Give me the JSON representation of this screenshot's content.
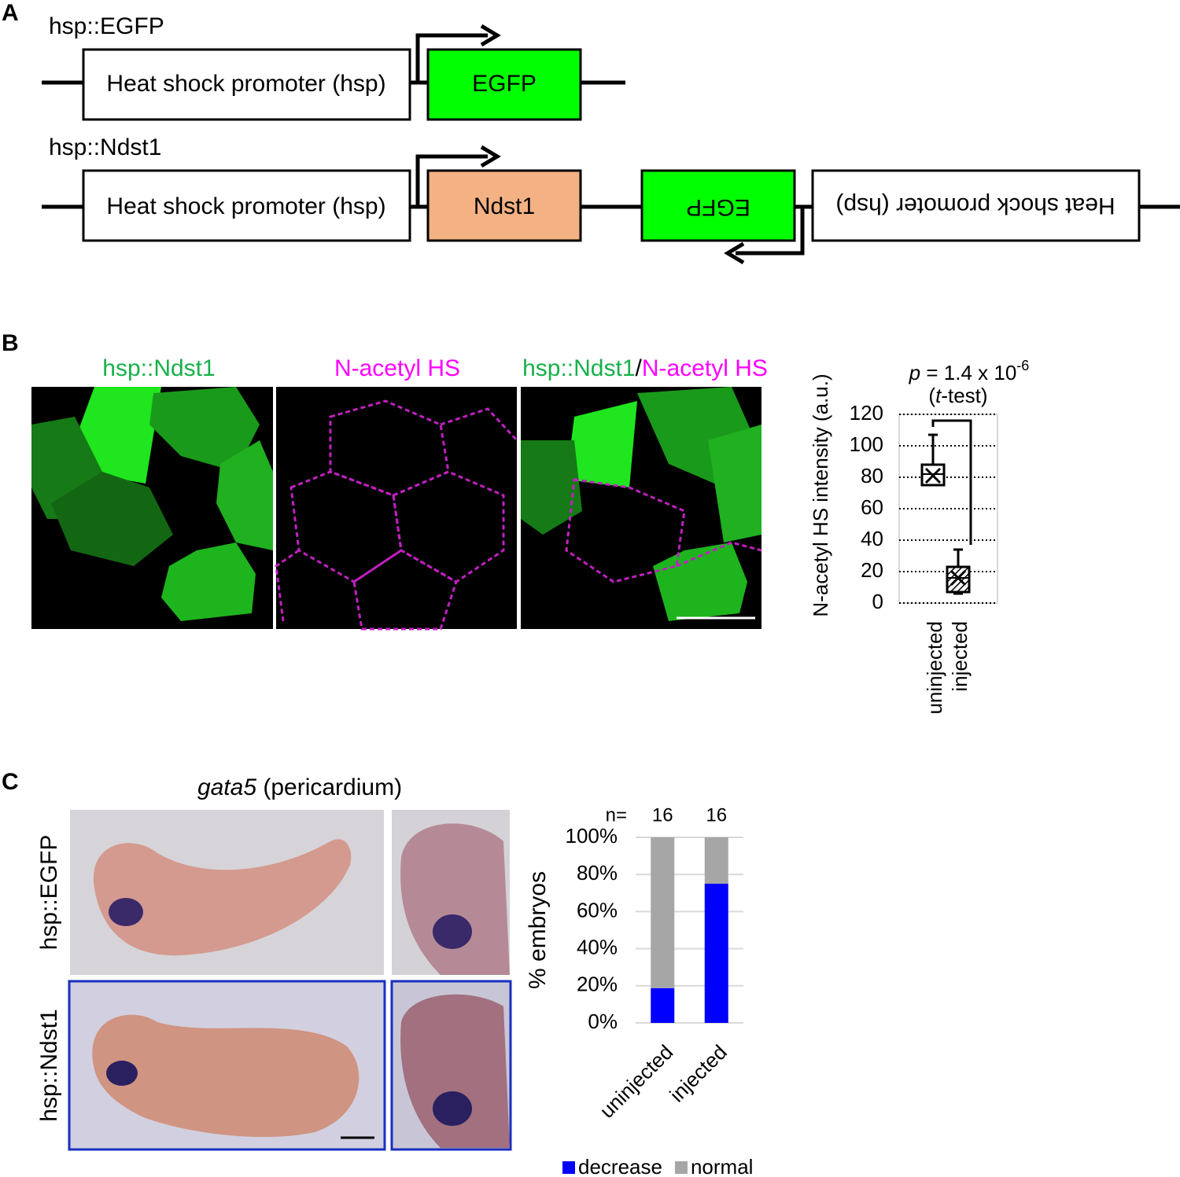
{
  "panel_labels": [
    "A",
    "B",
    "C"
  ],
  "construct_a": {
    "name": "hsp::EGFP",
    "promoter": "Heat shock promoter (hsp)",
    "gene": "EGFP"
  },
  "construct_b": {
    "name": "hsp::Ndst1",
    "promoter": "Heat shock promoter (hsp)",
    "gene": "Ndst1",
    "reverse_gene": "EGFP",
    "reverse_promoter": "Heat shock promoter (hsp)"
  },
  "panel_b": {
    "image_titles": [
      "hsp::Ndst1",
      "N-acetyl HS"
    ],
    "merge_title": [
      "hsp::Ndst1",
      "/",
      "N-acetyl HS"
    ]
  },
  "panel_c": {
    "title_italic": "gata5",
    "title_rest": " (pericardium)",
    "row_labels": [
      "hsp::EGFP",
      "hsp::Ndst1"
    ]
  },
  "chart_data": [
    {
      "type": "box",
      "ylabel": "N-acetyl HS intensity (a.u.)",
      "p_symbol": "p",
      "p_text": " = 1.4 x 10",
      "p_exponent": "-6",
      "test_open": "(",
      "test_italic": "t",
      "test_close": "-test)",
      "categories": [
        "uninjected",
        "injected"
      ],
      "min": [
        75,
        6
      ],
      "q1": [
        75,
        7
      ],
      "median": [
        82,
        16
      ],
      "q3": [
        88,
        23
      ],
      "max": [
        107,
        34
      ],
      "mean": [
        81,
        16
      ],
      "ylim": [
        0,
        120
      ],
      "yticks": [
        0,
        20,
        40,
        60,
        80,
        100,
        120
      ],
      "grid": true
    },
    {
      "type": "stacked_bar",
      "ylabel": "% embryos",
      "n_label": "n=",
      "n_values": [
        16,
        16
      ],
      "categories": [
        "uninjected",
        "injected"
      ],
      "series": [
        {
          "name": "decrease",
          "color": "#0000ff",
          "values": [
            18.75,
            75
          ]
        },
        {
          "name": "normal",
          "color": "#a6a6a6",
          "values": [
            81.25,
            25
          ]
        }
      ],
      "ylim": [
        0,
        100
      ],
      "yticks": [
        {
          "value": 0,
          "label": "0%"
        },
        {
          "value": 20,
          "label": "20%"
        },
        {
          "value": 40,
          "label": "40%"
        },
        {
          "value": 60,
          "label": "60%"
        },
        {
          "value": 80,
          "label": "80%"
        },
        {
          "value": 100,
          "label": "100%"
        }
      ],
      "grid": true,
      "legend": "bottom"
    }
  ]
}
